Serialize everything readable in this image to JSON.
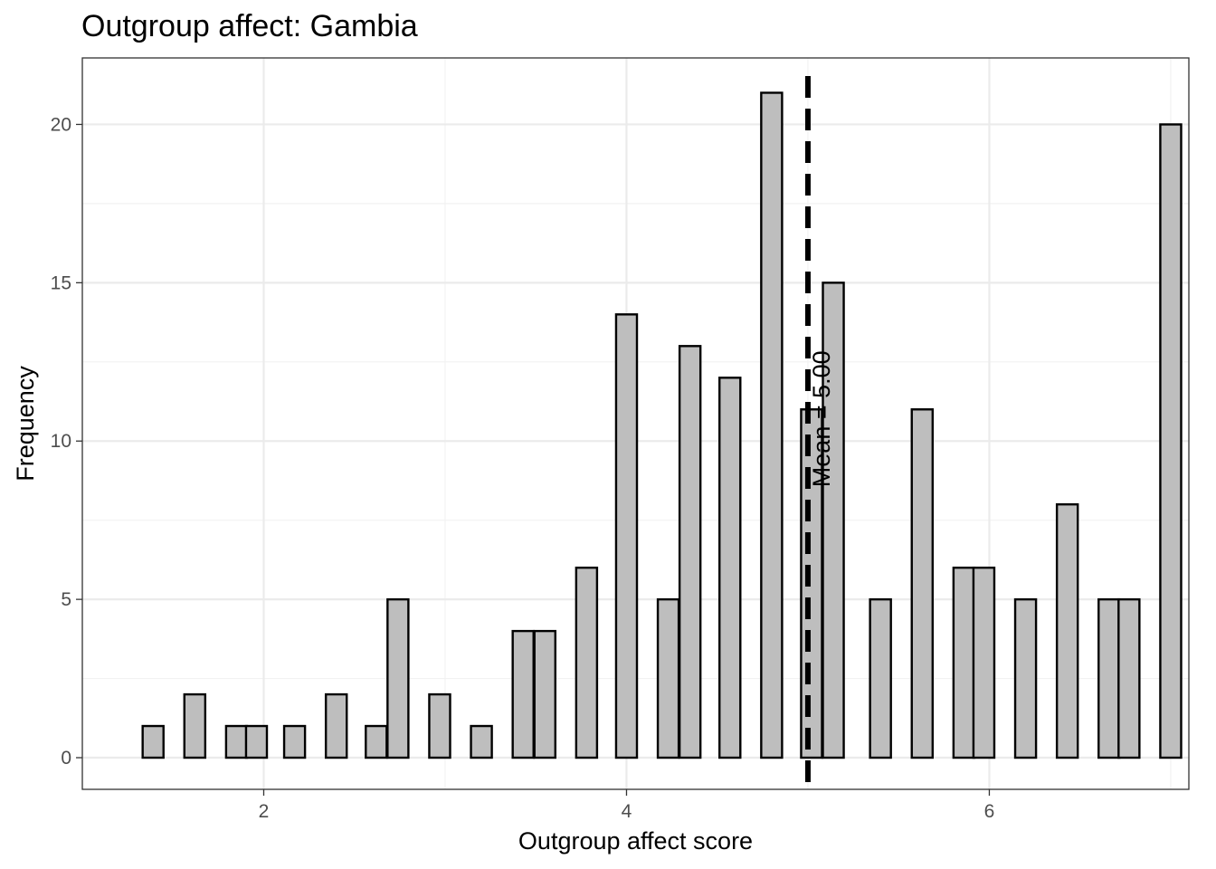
{
  "chart_data": {
    "type": "bar",
    "title": "Outgroup affect: Gambia",
    "xlabel": "Outgroup affect score",
    "ylabel": "Frequency",
    "xlim": [
      1.0,
      7.1
    ],
    "ylim": [
      -1.0,
      22.1
    ],
    "x_ticks": [
      2,
      4,
      6
    ],
    "y_ticks": [
      0,
      5,
      10,
      15,
      20
    ],
    "bar_width": 0.115,
    "bar_fill": "#bebebe",
    "bar_stroke": "#000000",
    "grid": true,
    "x": [
      1.39,
      1.62,
      1.85,
      1.96,
      2.17,
      2.4,
      2.62,
      2.74,
      2.97,
      3.2,
      3.43,
      3.55,
      3.78,
      4.0,
      4.23,
      4.35,
      4.57,
      4.8,
      5.02,
      5.14,
      5.4,
      5.63,
      5.86,
      5.97,
      6.2,
      6.43,
      6.66,
      6.77,
      7.0
    ],
    "values": [
      1,
      2,
      1,
      1,
      1,
      2,
      1,
      5,
      2,
      1,
      4,
      4,
      6,
      14,
      5,
      13,
      12,
      21,
      11,
      15,
      5,
      11,
      6,
      6,
      5,
      8,
      5,
      5,
      20
    ],
    "mean_line": {
      "x": 5.0,
      "label": "Mean = 5.00",
      "style": "dashed"
    }
  }
}
